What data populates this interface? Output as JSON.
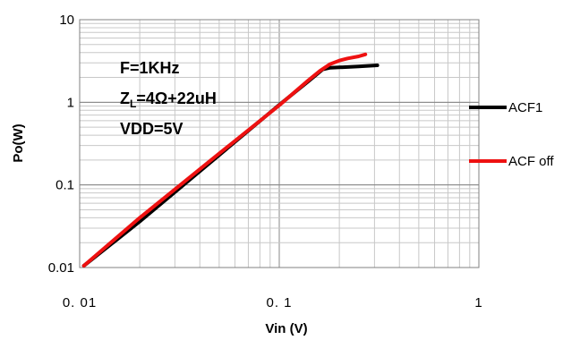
{
  "chart_data": {
    "type": "line",
    "xscale": "log",
    "yscale": "log",
    "xlim": [
      0.01,
      1
    ],
    "ylim": [
      0.01,
      10
    ],
    "xlabel": "Vin (V)",
    "ylabel": "Po(W)",
    "x_tick_labels": [
      "0. 01",
      "0. 1",
      "1"
    ],
    "y_tick_labels": [
      "0.01",
      "0.1",
      "1",
      "10"
    ],
    "grid": "major and minor",
    "legend_position": "right",
    "annotations": {
      "line1": "F=1KHz",
      "line2_main": "Z",
      "line2_sub": "L",
      "line2_rest": "=4Ω+22uH",
      "line3": "VDD=5V"
    },
    "series": [
      {
        "name": "ACF1",
        "color": "#000000",
        "x": [
          0.0105,
          0.02,
          0.05,
          0.1,
          0.14,
          0.165,
          0.18,
          0.2,
          0.25,
          0.31
        ],
        "y": [
          0.0105,
          0.036,
          0.23,
          0.93,
          1.8,
          2.5,
          2.62,
          2.65,
          2.72,
          2.8
        ]
      },
      {
        "name": "ACF off",
        "color": "#ee1111",
        "x": [
          0.0105,
          0.02,
          0.05,
          0.1,
          0.14,
          0.16,
          0.18,
          0.2,
          0.22,
          0.25,
          0.27
        ],
        "y": [
          0.0105,
          0.04,
          0.24,
          0.92,
          1.85,
          2.4,
          2.9,
          3.2,
          3.4,
          3.6,
          3.8
        ]
      }
    ]
  }
}
